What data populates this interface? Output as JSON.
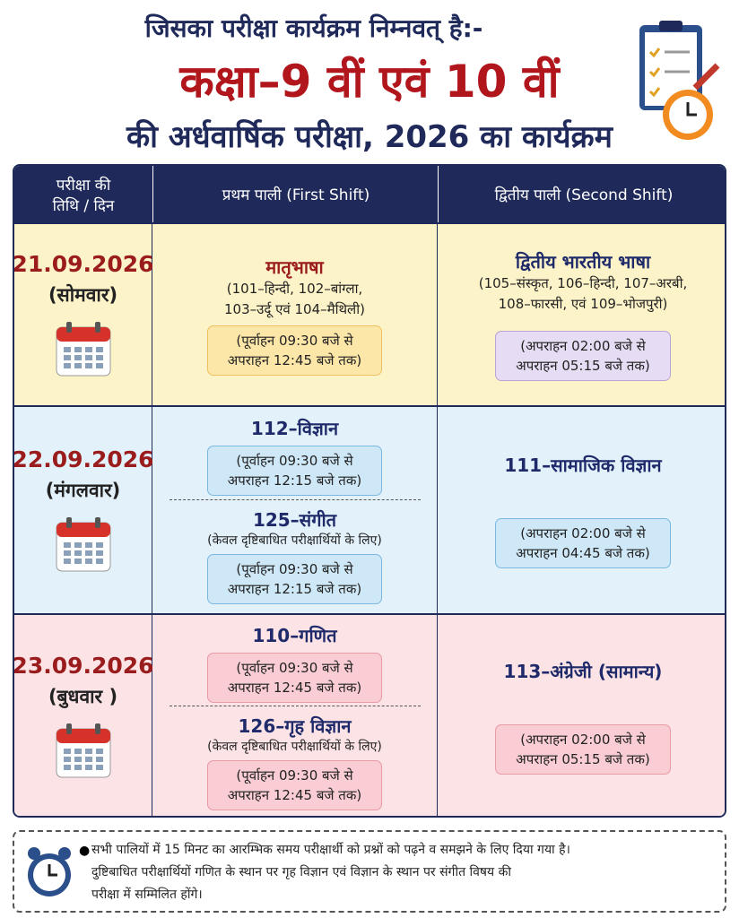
{
  "header": {
    "line1": "जिसका परीक्षा कार्यक्रम निम्नवत् है:-",
    "line2": "कक्षा–9 वीं एवं 10 वीं",
    "line3": "की अर्धवार्षिक परीक्षा, 2026 का कार्यक्रम"
  },
  "table": {
    "headers": [
      [
        "परीक्षा की",
        "तिथि / दिन"
      ],
      "प्रथम पाली (First Shift)",
      "द्वितीय पाली (Second Shift)"
    ],
    "rows": [
      {
        "date": "21.09.2026",
        "day": "(सोमवार)",
        "first": [
          {
            "subject": "मातृभाषा",
            "detail": [
              "(101–हिन्दी, 102–बांग्ला,",
              "103–उर्दू एवं 104–मैथिली)"
            ],
            "time": [
              "(पूर्वाहन 09:30 बजे से",
              "अपराहन 12:45 बजे तक)"
            ]
          }
        ],
        "second": {
          "subject": "द्वितीय भारतीय भाषा",
          "detail": [
            "(105–संस्कृत, 106–हिन्दी, 107–अरबी,",
            "108–फारसी, एवं 109–भोजपुरी)"
          ],
          "time": [
            "(अपराहन 02:00 बजे से",
            "अपराहन 05:15 बजे तक)"
          ]
        }
      },
      {
        "date": "22.09.2026",
        "day": "(मंगलवार)",
        "first": [
          {
            "subject": "112–विज्ञान",
            "time": [
              "(पूर्वाहन 09:30 बजे से",
              "अपराहन 12:15 बजे तक)"
            ]
          },
          {
            "subject": "125–संगीत",
            "note": "(केवल दृष्टिबाधित परीक्षार्थियों के लिए)",
            "time": [
              "(पूर्वाहन 09:30 बजे से",
              "अपराहन 12:15 बजे तक)"
            ]
          }
        ],
        "second": {
          "subject": "111–सामाजिक विज्ञान",
          "time": [
            "(अपराहन 02:00 बजे से",
            "अपराहन 04:45 बजे तक)"
          ]
        }
      },
      {
        "date": "23.09.2026",
        "day": "(बुधवार )",
        "first": [
          {
            "subject": "110–गणित",
            "time": [
              "(पूर्वाहन 09:30 बजे से",
              "अपराहन 12:45 बजे तक)"
            ]
          },
          {
            "subject": "126–गृह विज्ञान",
            "note": "(केवल दृष्टिबाधित परीक्षार्थियों के लिए)",
            "time": [
              "(पूर्वाहन 09:30 बजे से",
              "अपराहन 12:45 बजे तक)"
            ]
          }
        ],
        "second": {
          "subject": "113–अंग्रेजी (सामान्य)",
          "time": [
            "(अपराहन 02:00 बजे से",
            "अपराहन 05:15 बजे तक)"
          ]
        }
      }
    ]
  },
  "footnote": [
    "सभी पालियों में 15 मिनट का आरम्भिक समय परीक्षार्थी को प्रश्नों को पढ़ने व समझने के लिए दिया गया है।",
    "दुष्टिबाधित परीक्षार्थियों गणित के स्थान पर गृह विज्ञान एवं विज्ञान के स्थान पर संगीत विषय की",
    "परीक्षा में सम्मिलित होंगे।"
  ]
}
